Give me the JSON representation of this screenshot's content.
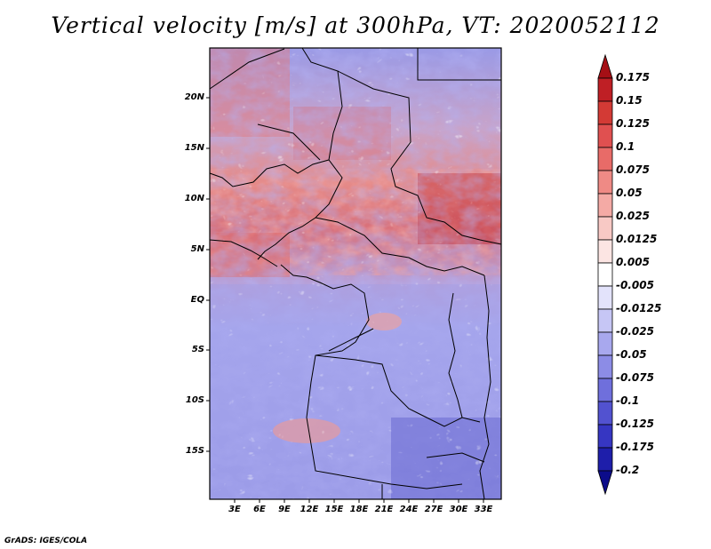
{
  "title": "Vertical velocity [m/s] at 300hPa, VT: 2020052112",
  "footer": "GrADS: IGES/COLA",
  "lat_labels": [
    "20N",
    "15N",
    "10N",
    "5N",
    "EQ",
    "5S",
    "10S",
    "15S"
  ],
  "lon_labels": [
    "3E",
    "6E",
    "9E",
    "12E",
    "15E",
    "18E",
    "21E",
    "24E",
    "27E",
    "30E",
    "33E"
  ],
  "colorbar": {
    "levels": [
      "0.175",
      "0.15",
      "0.125",
      "0.1",
      "0.075",
      "0.05",
      "0.025",
      "0.0125",
      "0.005",
      "-0.005",
      "-0.0125",
      "-0.025",
      "-0.05",
      "-0.075",
      "-0.1",
      "-0.125",
      "-0.175",
      "-0.2"
    ],
    "colors": [
      "#a50f15",
      "#bf1f25",
      "#d33a35",
      "#e05050",
      "#e86b68",
      "#ef8a85",
      "#f4aaa5",
      "#f8c9c5",
      "#fce5e3",
      "#ffffff",
      "#e3e3fb",
      "#c6c6f5",
      "#a8a8ee",
      "#8c8ce6",
      "#6f6fdc",
      "#5252d0",
      "#3636c2",
      "#1e1eaa",
      "#0c0c8a"
    ]
  },
  "map": {
    "lon_range": [
      0,
      35
    ],
    "lat_range": [
      -20,
      24.5
    ],
    "field_description_regions": [
      {
        "name": "tropical-ascent-band",
        "lat_range": [
          2,
          12
        ],
        "sign": "positive"
      },
      {
        "name": "southern-subsidence",
        "lat_range": [
          -20,
          0
        ],
        "sign": "negative"
      }
    ]
  }
}
